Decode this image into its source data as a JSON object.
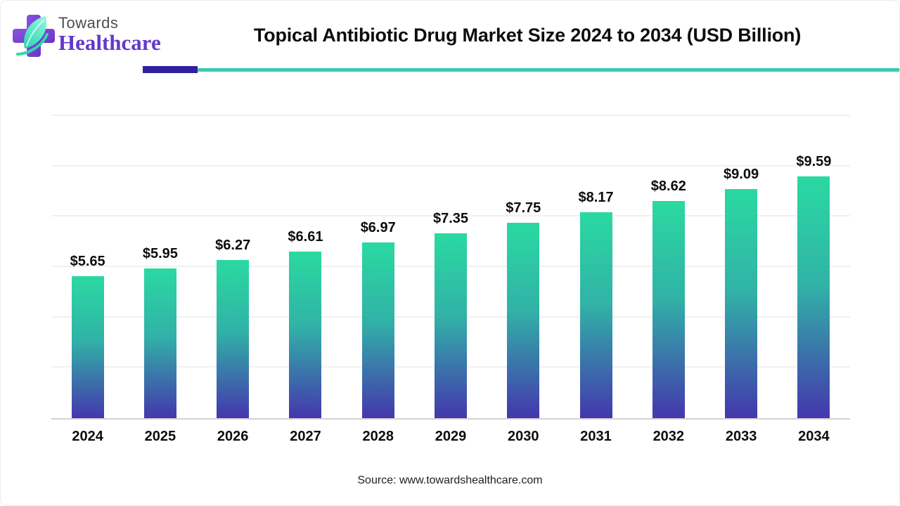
{
  "brand": {
    "line1": "Towards",
    "line2": "Healthcare"
  },
  "header": {
    "title": "Topical Antibiotic Drug Market Size 2024 to 2034 (USD Billion)"
  },
  "chart_data": {
    "type": "bar",
    "title": "Topical Antibiotic Drug Market Size 2024 to 2034 (USD Billion)",
    "categories": [
      "2024",
      "2025",
      "2026",
      "2027",
      "2028",
      "2029",
      "2030",
      "2031",
      "2032",
      "2033",
      "2034"
    ],
    "values": [
      5.65,
      5.95,
      6.27,
      6.61,
      6.97,
      7.35,
      7.75,
      8.17,
      8.62,
      9.09,
      9.59
    ],
    "labels": [
      "$5.65",
      "$5.95",
      "$6.27",
      "$6.61",
      "$6.97",
      "$7.35",
      "$7.75",
      "$8.17",
      "$8.62",
      "$9.09",
      "$9.59"
    ],
    "xlabel": "",
    "ylabel": "",
    "unit": "USD Billion",
    "ylim": [
      0,
      12
    ],
    "gridline_step": 2,
    "grid": "horizontal-light",
    "legend": "none",
    "bar_gradient": {
      "top": "#2ad9a1",
      "bottom": "#4437ad"
    }
  },
  "footer": {
    "source": "Source: www.towardshealthcare.com"
  },
  "colors": {
    "accent_purple": "#32219c",
    "accent_teal": "#3dcab2",
    "brand_purple": "#6338cb",
    "brand_gray": "#4f4f4f",
    "axis_line": "#d2d2d2",
    "gridline": "#f1f1f1",
    "text": "#0d0d0d"
  }
}
